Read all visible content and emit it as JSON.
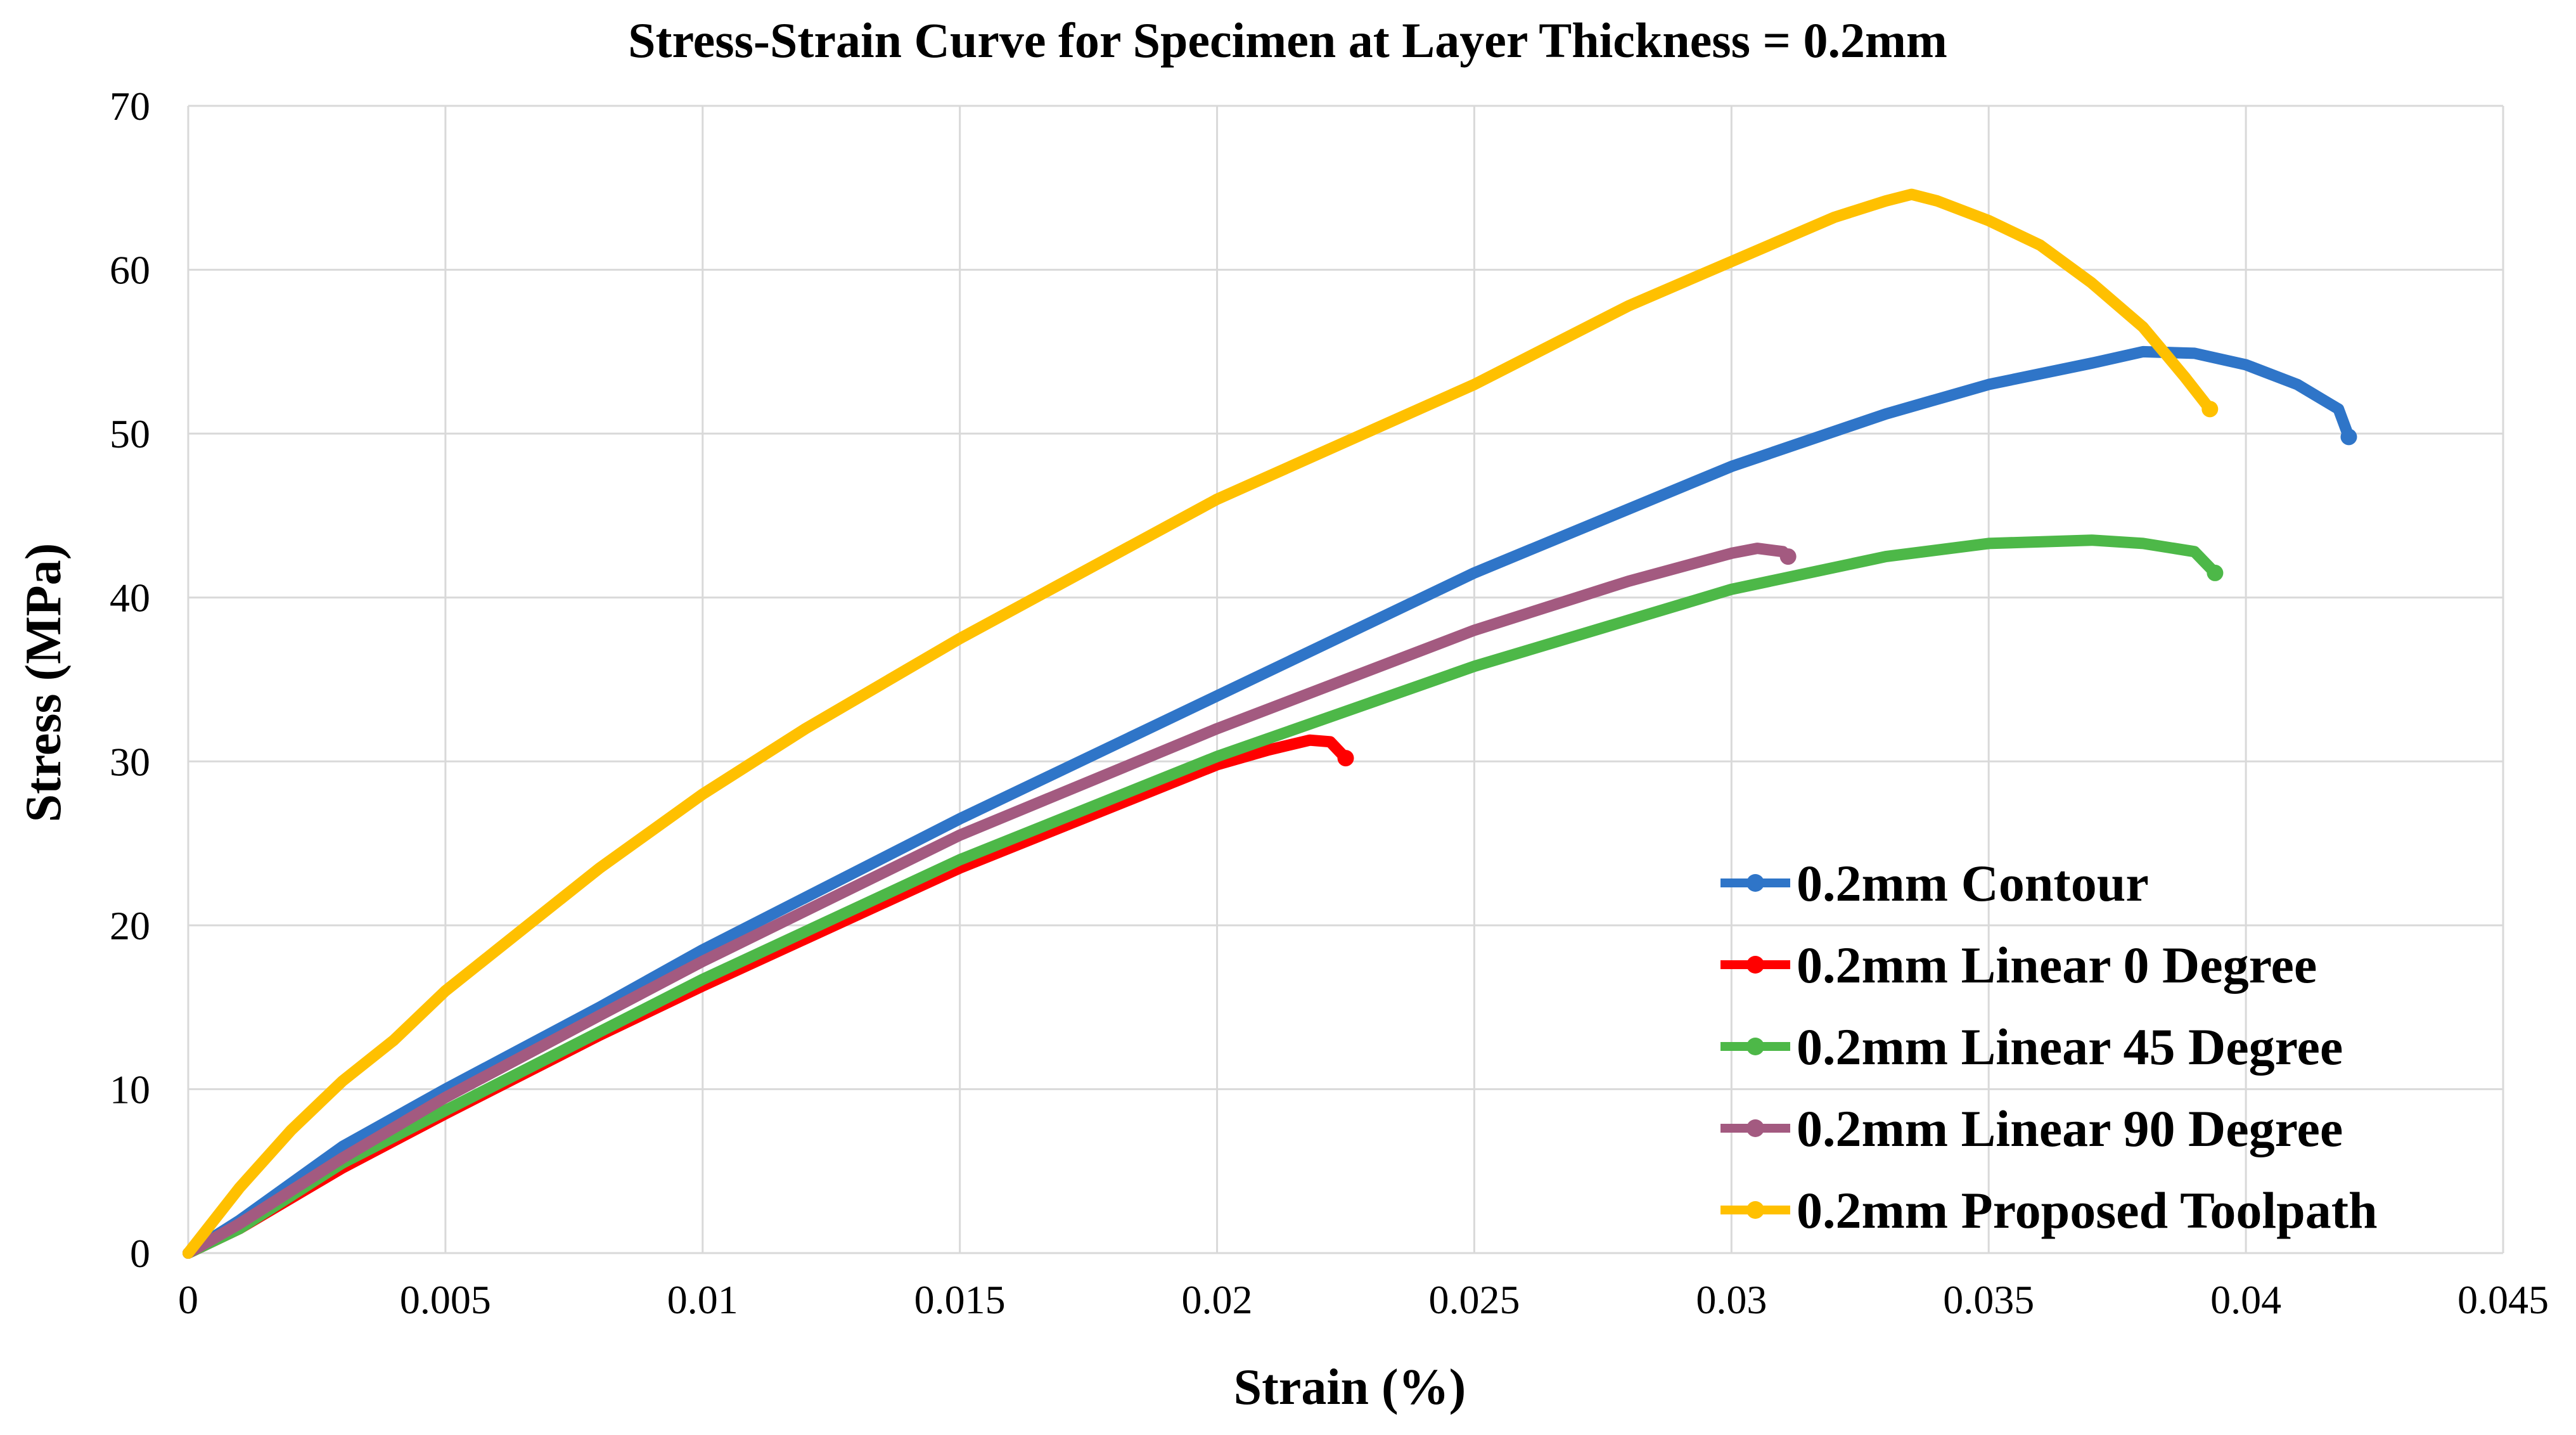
{
  "chart_data": {
    "type": "line",
    "title": "Stress-Strain Curve for Specimen at Layer Thickness = 0.2mm",
    "xlabel": "Strain (%)",
    "ylabel": "Stress (MPa)",
    "xlim": [
      0,
      0.045
    ],
    "ylim": [
      0,
      70
    ],
    "grid": true,
    "legend_position": "bottom-right",
    "x_ticks": [
      "0",
      "0.005",
      "0.01",
      "0.015",
      "0.02",
      "0.025",
      "0.03",
      "0.035",
      "0.04",
      "0.045"
    ],
    "x_tick_values": [
      0,
      0.005,
      0.01,
      0.015,
      0.02,
      0.025,
      0.03,
      0.035,
      0.04,
      0.045
    ],
    "y_ticks": [
      "0",
      "10",
      "20",
      "30",
      "40",
      "50",
      "60",
      "70"
    ],
    "y_tick_values": [
      0,
      10,
      20,
      30,
      40,
      50,
      60,
      70
    ],
    "series": [
      {
        "name": "0.2mm Contour",
        "color": "#2F75C8",
        "points": [
          [
            0,
            0
          ],
          [
            0.001,
            2
          ],
          [
            0.003,
            6.5
          ],
          [
            0.005,
            10
          ],
          [
            0.008,
            15
          ],
          [
            0.01,
            18.5
          ],
          [
            0.015,
            26.5
          ],
          [
            0.02,
            34
          ],
          [
            0.025,
            41.5
          ],
          [
            0.03,
            48
          ],
          [
            0.033,
            51.2
          ],
          [
            0.035,
            53
          ],
          [
            0.037,
            54.3
          ],
          [
            0.038,
            55
          ],
          [
            0.039,
            54.9
          ],
          [
            0.04,
            54.2
          ],
          [
            0.041,
            53
          ],
          [
            0.0418,
            51.5
          ],
          [
            0.042,
            49.8
          ]
        ]
      },
      {
        "name": "0.2mm Linear 0 Degree",
        "color": "#FF0000",
        "points": [
          [
            0,
            0
          ],
          [
            0.001,
            1.5
          ],
          [
            0.003,
            5.2
          ],
          [
            0.005,
            8.5
          ],
          [
            0.008,
            13.3
          ],
          [
            0.01,
            16.3
          ],
          [
            0.015,
            23.5
          ],
          [
            0.02,
            29.8
          ],
          [
            0.021,
            30.7
          ],
          [
            0.0218,
            31.3
          ],
          [
            0.0222,
            31.2
          ],
          [
            0.0225,
            30.2
          ]
        ]
      },
      {
        "name": "0.2mm Linear 45 Degree",
        "color": "#4DB848",
        "points": [
          [
            0,
            0
          ],
          [
            0.001,
            1.5
          ],
          [
            0.003,
            5.5
          ],
          [
            0.005,
            8.7
          ],
          [
            0.008,
            13.5
          ],
          [
            0.01,
            16.7
          ],
          [
            0.015,
            24
          ],
          [
            0.02,
            30.3
          ],
          [
            0.025,
            35.8
          ],
          [
            0.03,
            40.5
          ],
          [
            0.033,
            42.5
          ],
          [
            0.035,
            43.3
          ],
          [
            0.037,
            43.5
          ],
          [
            0.038,
            43.3
          ],
          [
            0.039,
            42.8
          ],
          [
            0.0394,
            41.5
          ]
        ]
      },
      {
        "name": "0.2mm Linear 90 Degree",
        "color": "#A35A80",
        "points": [
          [
            0,
            0
          ],
          [
            0.001,
            1.8
          ],
          [
            0.003,
            5.8
          ],
          [
            0.005,
            9.5
          ],
          [
            0.008,
            14.5
          ],
          [
            0.01,
            17.8
          ],
          [
            0.015,
            25.5
          ],
          [
            0.02,
            32
          ],
          [
            0.025,
            38
          ],
          [
            0.028,
            41
          ],
          [
            0.03,
            42.7
          ],
          [
            0.0305,
            43
          ],
          [
            0.031,
            42.8
          ],
          [
            0.0311,
            42.5
          ]
        ]
      },
      {
        "name": "0.2mm Proposed Toolpath",
        "color": "#FFC000",
        "points": [
          [
            0,
            0
          ],
          [
            0.001,
            4
          ],
          [
            0.002,
            7.5
          ],
          [
            0.003,
            10.5
          ],
          [
            0.004,
            13
          ],
          [
            0.005,
            16
          ],
          [
            0.006,
            18.5
          ],
          [
            0.008,
            23.5
          ],
          [
            0.01,
            28
          ],
          [
            0.012,
            32
          ],
          [
            0.015,
            37.5
          ],
          [
            0.02,
            46
          ],
          [
            0.025,
            53
          ],
          [
            0.028,
            57.8
          ],
          [
            0.03,
            60.5
          ],
          [
            0.032,
            63.2
          ],
          [
            0.033,
            64.2
          ],
          [
            0.0335,
            64.6
          ],
          [
            0.034,
            64.2
          ],
          [
            0.035,
            63
          ],
          [
            0.036,
            61.5
          ],
          [
            0.037,
            59.2
          ],
          [
            0.038,
            56.5
          ],
          [
            0.0388,
            53.5
          ],
          [
            0.0393,
            51.5
          ]
        ]
      }
    ]
  }
}
